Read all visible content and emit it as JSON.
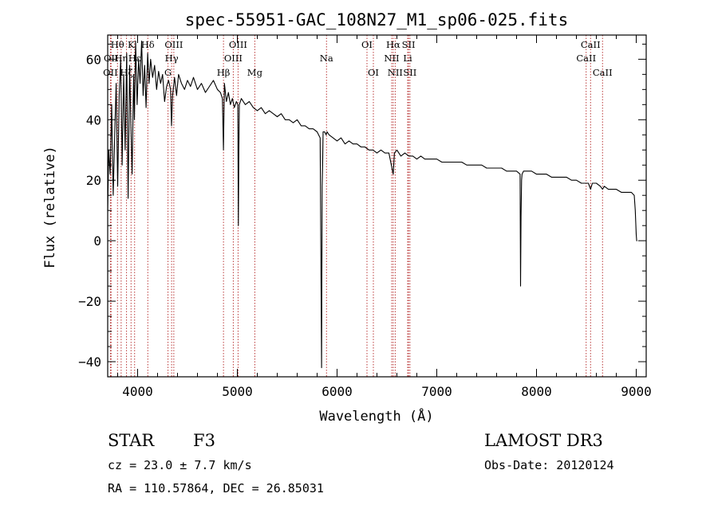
{
  "chart_data": {
    "type": "line",
    "title": "spec-55951-GAC_108N27_M1_sp06-025.fits",
    "xlabel": "Wavelength (Å)",
    "ylabel": "Flux (relative)",
    "xlim": [
      3700,
      9100
    ],
    "ylim": [
      -45,
      68
    ],
    "grid": false,
    "x_ticks": [
      4000,
      5000,
      6000,
      7000,
      8000,
      9000
    ],
    "x_tick_labels": [
      "4000",
      "5000",
      "6000",
      "7000",
      "8000",
      "9000"
    ],
    "y_ticks": [
      -40,
      -20,
      0,
      20,
      40,
      60
    ],
    "y_tick_labels": [
      "−40",
      "−20",
      "0",
      "20",
      "40",
      "60"
    ],
    "x_minor_step": 200,
    "y_minor_step": 5,
    "series": [
      {
        "name": "flux",
        "x": [
          3700,
          3710,
          3725,
          3740,
          3755,
          3770,
          3785,
          3800,
          3815,
          3830,
          3845,
          3860,
          3875,
          3890,
          3905,
          3920,
          3933,
          3945,
          3960,
          3968,
          3980,
          3995,
          4010,
          4025,
          4040,
          4055,
          4070,
          4085,
          4101,
          4115,
          4130,
          4150,
          4170,
          4190,
          4210,
          4230,
          4250,
          4270,
          4290,
          4310,
          4330,
          4340,
          4350,
          4370,
          4390,
          4410,
          4440,
          4470,
          4500,
          4530,
          4560,
          4600,
          4640,
          4680,
          4720,
          4760,
          4800,
          4830,
          4850,
          4861,
          4870,
          4890,
          4910,
          4930,
          4950,
          4970,
          4990,
          5005,
          5010,
          5015,
          5020,
          5040,
          5080,
          5120,
          5160,
          5200,
          5240,
          5280,
          5320,
          5360,
          5400,
          5440,
          5480,
          5520,
          5560,
          5600,
          5640,
          5680,
          5720,
          5760,
          5800,
          5830,
          5845,
          5850,
          5855,
          5860,
          5875,
          5890,
          5900,
          5920,
          5960,
          6000,
          6040,
          6080,
          6120,
          6160,
          6200,
          6240,
          6280,
          6320,
          6360,
          6400,
          6440,
          6480,
          6520,
          6550,
          6563,
          6575,
          6600,
          6640,
          6680,
          6720,
          6760,
          6800,
          6840,
          6880,
          6920,
          6960,
          7000,
          7050,
          7100,
          7150,
          7200,
          7250,
          7300,
          7350,
          7400,
          7450,
          7500,
          7550,
          7600,
          7650,
          7700,
          7750,
          7800,
          7835,
          7840,
          7845,
          7850,
          7855,
          7870,
          7900,
          7950,
          8000,
          8050,
          8100,
          8150,
          8200,
          8250,
          8300,
          8350,
          8400,
          8450,
          8500,
          8520,
          8542,
          8560,
          8600,
          8640,
          8662,
          8680,
          8720,
          8760,
          8800,
          8850,
          8900,
          8950,
          8980,
          8990,
          9000,
          9005,
          9010
        ],
        "y": [
          10,
          30,
          22,
          45,
          15,
          35,
          52,
          18,
          48,
          60,
          25,
          55,
          30,
          62,
          14,
          58,
          38,
          22,
          55,
          40,
          66,
          45,
          60,
          52,
          66,
          48,
          58,
          44,
          62,
          52,
          60,
          54,
          58,
          50,
          56,
          52,
          55,
          46,
          51,
          53,
          50,
          38,
          48,
          54,
          48,
          55,
          52,
          50,
          53,
          51,
          54,
          50,
          52,
          49,
          51,
          53,
          50,
          49,
          47,
          30,
          52,
          46,
          49,
          45,
          47,
          44,
          46,
          45,
          5,
          30,
          45,
          47,
          45,
          46,
          44,
          43,
          44,
          42,
          43,
          42,
          41,
          42,
          40,
          40,
          39,
          40,
          38,
          38,
          37,
          37,
          36,
          34,
          -42,
          18,
          25,
          36,
          36,
          35,
          36,
          35,
          34,
          33,
          34,
          32,
          33,
          32,
          32,
          31,
          31,
          30,
          30,
          29,
          30,
          29,
          29,
          24,
          22,
          29,
          30,
          28,
          29,
          28,
          28,
          27,
          28,
          27,
          27,
          27,
          27,
          26,
          26,
          26,
          26,
          26,
          25,
          25,
          25,
          25,
          24,
          24,
          24,
          24,
          23,
          23,
          23,
          22,
          -15,
          8,
          20,
          22,
          23,
          23,
          23,
          22,
          22,
          22,
          21,
          21,
          21,
          21,
          20,
          20,
          19,
          19,
          19,
          17,
          19,
          19,
          18,
          17,
          18,
          17,
          17,
          17,
          16,
          16,
          16,
          15,
          10,
          2,
          0,
          0
        ]
      }
    ],
    "line_markers": [
      {
        "label": "OII",
        "x": 3727,
        "row": 2
      },
      {
        "label": "OII",
        "x": 3734,
        "row": 1
      },
      {
        "label": "Hθ",
        "x": 3798,
        "row": 0
      },
      {
        "label": "Hη",
        "x": 3835,
        "row": 1
      },
      {
        "label": "Hζ",
        "x": 3889,
        "row": 2
      },
      {
        "label": "K",
        "x": 3934,
        "row": 0
      },
      {
        "label": "Hε",
        "x": 3970,
        "row": 1
      },
      {
        "label": "Hδ",
        "x": 4102,
        "row": 0
      },
      {
        "label": "G",
        "x": 4305,
        "row": 2
      },
      {
        "label": "Hγ",
        "x": 4341,
        "row": 1
      },
      {
        "label": "OIII",
        "x": 4363,
        "row": 0
      },
      {
        "label": "Hβ",
        "x": 4861,
        "row": 2
      },
      {
        "label": "OIII",
        "x": 4959,
        "row": 1
      },
      {
        "label": "OIII",
        "x": 5007,
        "row": 0
      },
      {
        "label": "Mg",
        "x": 5175,
        "row": 2
      },
      {
        "label": "Na",
        "x": 5894,
        "row": 1
      },
      {
        "label": "OI",
        "x": 6300,
        "row": 0
      },
      {
        "label": "OI",
        "x": 6364,
        "row": 2
      },
      {
        "label": "NII",
        "x": 6548,
        "row": 1
      },
      {
        "label": "Hα",
        "x": 6563,
        "row": 0
      },
      {
        "label": "NII",
        "x": 6583,
        "row": 2
      },
      {
        "label": "Li",
        "x": 6708,
        "row": 1
      },
      {
        "label": "SII",
        "x": 6717,
        "row": 0
      },
      {
        "label": "SII",
        "x": 6731,
        "row": 2
      },
      {
        "label": "CaII",
        "x": 8498,
        "row": 1
      },
      {
        "label": "CaII",
        "x": 8542,
        "row": 0
      },
      {
        "label": "CaII",
        "x": 8662,
        "row": 2
      }
    ]
  },
  "info": {
    "class_label": "STAR",
    "subclass_label": "F3",
    "survey_label": "LAMOST DR3",
    "cz_text": "cz = 23.0 ± 7.7 km/s",
    "obs_date_text": "Obs-Date: 20120124",
    "coords_text": "RA = 110.57864, DEC =  26.85031"
  }
}
